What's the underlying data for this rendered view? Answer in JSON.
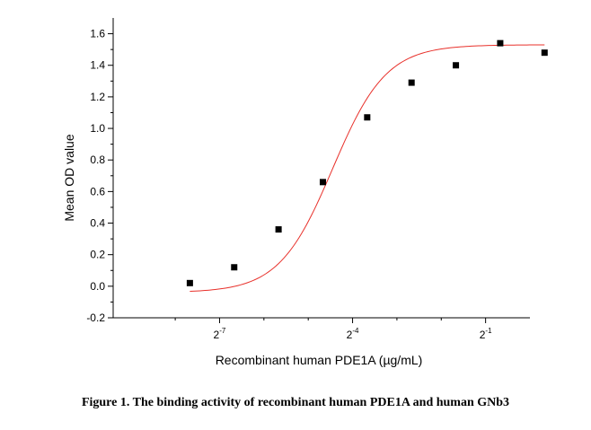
{
  "caption": "Figure 1. The binding activity of recombinant human PDE1A and human GNb3",
  "chart_data": {
    "type": "scatter",
    "xlabel": "Recombinant human PDE1A (µg/mL)",
    "ylabel": "Mean OD value",
    "x_scale": "log2",
    "xlim": [
      -9.4,
      0
    ],
    "ylim": [
      -0.2,
      1.7
    ],
    "y_ticks": [
      -0.2,
      0.0,
      0.2,
      0.4,
      0.6,
      0.8,
      1.0,
      1.2,
      1.4,
      1.6
    ],
    "x_tick_labels": [
      {
        "base": "2",
        "exp": "-7",
        "pos": -7
      },
      {
        "base": "2",
        "exp": "-4",
        "pos": -4
      },
      {
        "base": "2",
        "exp": "-1",
        "pos": -1
      }
    ],
    "x_minor_ticks": [
      -8,
      -6,
      -5,
      -3,
      -2
    ],
    "grid": false,
    "points": [
      {
        "x": -7.67,
        "y": 0.02
      },
      {
        "x": -6.67,
        "y": 0.12
      },
      {
        "x": -5.67,
        "y": 0.36
      },
      {
        "x": -4.67,
        "y": 0.66
      },
      {
        "x": -3.67,
        "y": 1.07
      },
      {
        "x": -2.67,
        "y": 1.29
      },
      {
        "x": -1.67,
        "y": 1.4
      },
      {
        "x": -0.67,
        "y": 1.54
      },
      {
        "x": 0.33,
        "y": 1.48
      }
    ],
    "fit": {
      "bottom": -0.04,
      "top": 1.53,
      "x50": -4.45,
      "slope": 0.72,
      "x_range": [
        -7.67,
        0.33
      ]
    },
    "marker_color": "#000000",
    "fit_color": "#e8302a"
  }
}
